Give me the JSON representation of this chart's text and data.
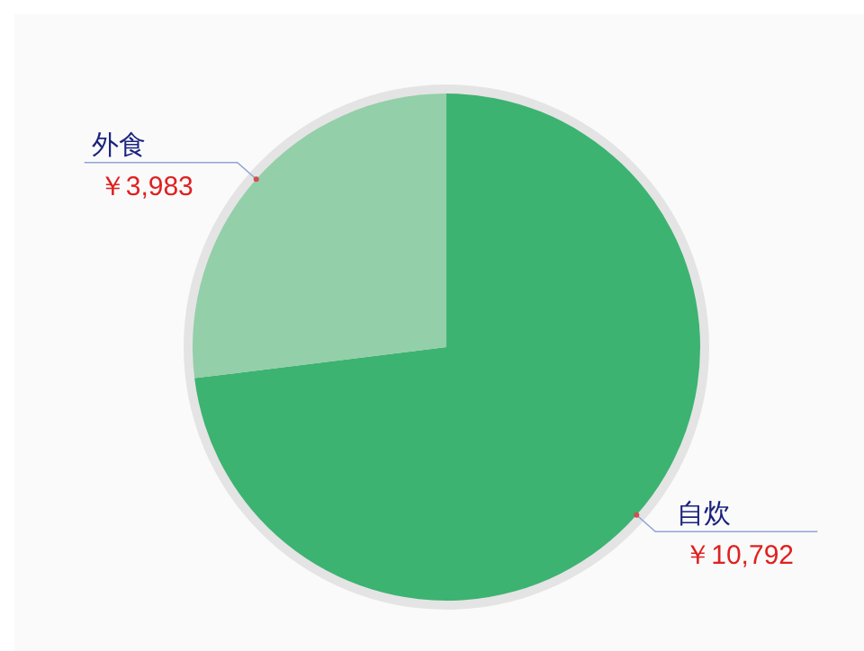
{
  "chart_data": {
    "type": "pie",
    "categories": [
      "自炊",
      "外食"
    ],
    "values": [
      10792,
      3983
    ],
    "colors": [
      "#3cb371",
      "#93cfa9"
    ],
    "value_labels": [
      "￥10,792",
      "￥3,983"
    ]
  }
}
